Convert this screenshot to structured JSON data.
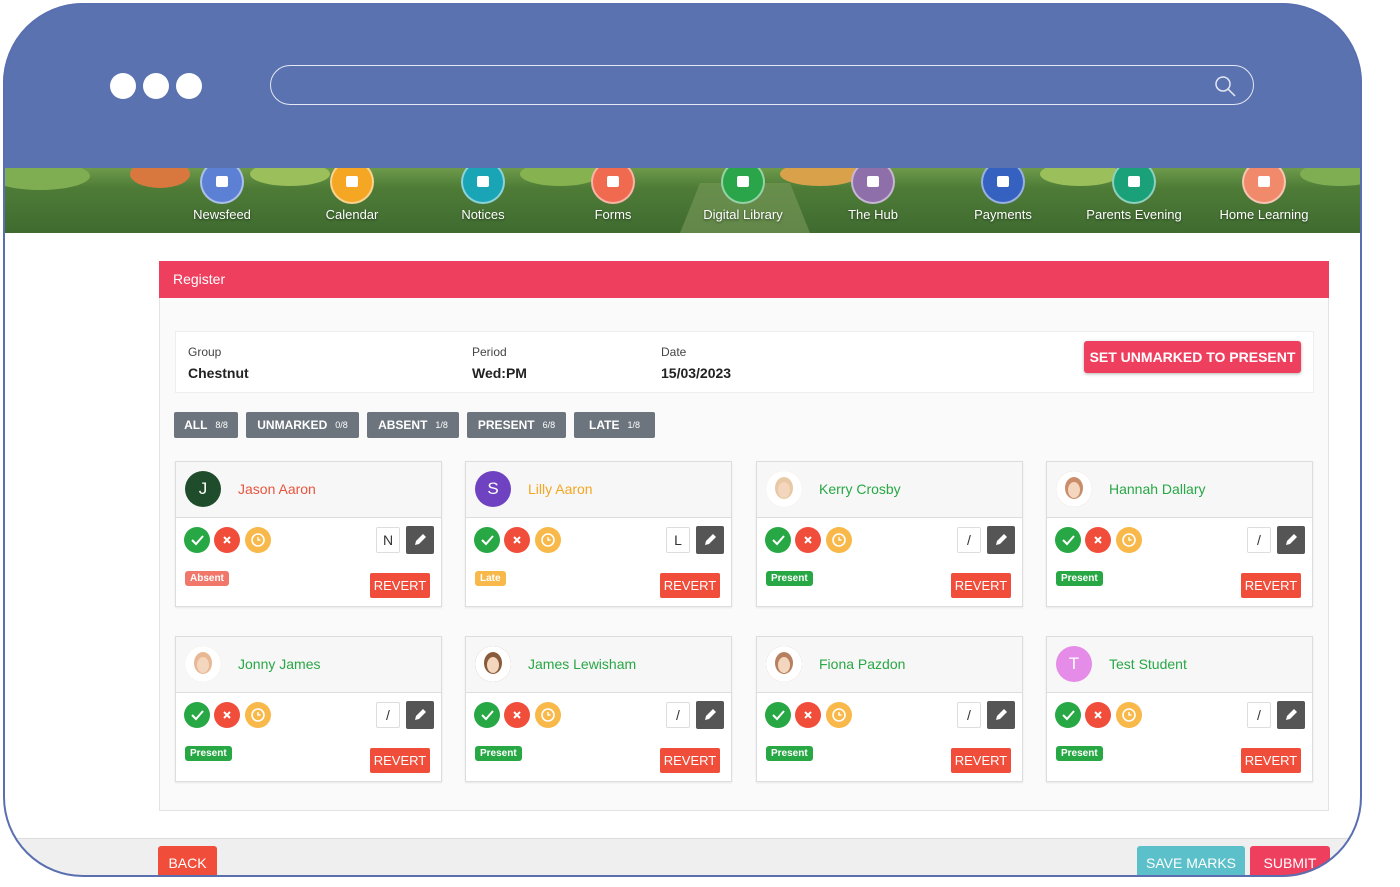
{
  "nav": [
    {
      "label": "Newsfeed",
      "color": "#5b80d4"
    },
    {
      "label": "Calendar",
      "color": "#f5a623"
    },
    {
      "label": "Notices",
      "color": "#19a5b5"
    },
    {
      "label": "Forms",
      "color": "#f06a4f"
    },
    {
      "label": "Digital Library",
      "color": "#2aa54a"
    },
    {
      "label": "The Hub",
      "color": "#8e6fa9"
    },
    {
      "label": "Payments",
      "color": "#3561c1"
    },
    {
      "label": "Parents Evening",
      "color": "#1aa17a"
    },
    {
      "label": "Home Learning",
      "color": "#f08a6b"
    }
  ],
  "register": {
    "title": "Register",
    "group_label": "Group",
    "group": "Chestnut",
    "period_label": "Period",
    "period": "Wed:PM",
    "date_label": "Date",
    "date": "15/03/2023",
    "set_unmarked": "SET UNMARKED TO PRESENT"
  },
  "filters": [
    {
      "label": "ALL",
      "count": "8/8"
    },
    {
      "label": "UNMARKED",
      "count": "0/8"
    },
    {
      "label": "ABSENT",
      "count": "1/8"
    },
    {
      "label": "PRESENT",
      "count": "6/8"
    },
    {
      "label": "LATE",
      "count": "1/8"
    }
  ],
  "revert_label": "REVERT",
  "students": [
    {
      "name": "Jason Aaron",
      "initial": "J",
      "avatar_color": "#1f4d2c",
      "name_color": "#e8553e",
      "code": "N",
      "status": "Absent",
      "status_color": "#f0776a"
    },
    {
      "name": "Lilly Aaron",
      "initial": "S",
      "avatar_color": "#6f42c1",
      "name_color": "#f5a623",
      "code": "L",
      "status": "Late",
      "status_color": "#f8b84a"
    },
    {
      "name": "Kerry Crosby",
      "avatar_color": "#e9c9a5",
      "name_color": "#28a745",
      "code": "/",
      "status": "Present",
      "status_color": "#28a745"
    },
    {
      "name": "Hannah Dallary",
      "avatar_color": "#c98d6b",
      "name_color": "#28a745",
      "code": "/",
      "status": "Present",
      "status_color": "#28a745"
    },
    {
      "name": "Jonny James",
      "avatar_color": "#e8b894",
      "name_color": "#28a745",
      "code": "/",
      "status": "Present",
      "status_color": "#28a745"
    },
    {
      "name": "James Lewisham",
      "avatar_color": "#8a5a3c",
      "name_color": "#28a745",
      "code": "/",
      "status": "Present",
      "status_color": "#28a745"
    },
    {
      "name": "Fiona Pazdon",
      "avatar_color": "#b7805e",
      "name_color": "#28a745",
      "code": "/",
      "status": "Present",
      "status_color": "#28a745"
    },
    {
      "name": "Test Student",
      "initial": "T",
      "avatar_color": "#e58be8",
      "name_color": "#28a745",
      "code": "/",
      "status": "Present",
      "status_color": "#28a745"
    }
  ],
  "footer": {
    "back": "BACK",
    "save": "SAVE MARKS",
    "submit": "SUBMIT"
  }
}
